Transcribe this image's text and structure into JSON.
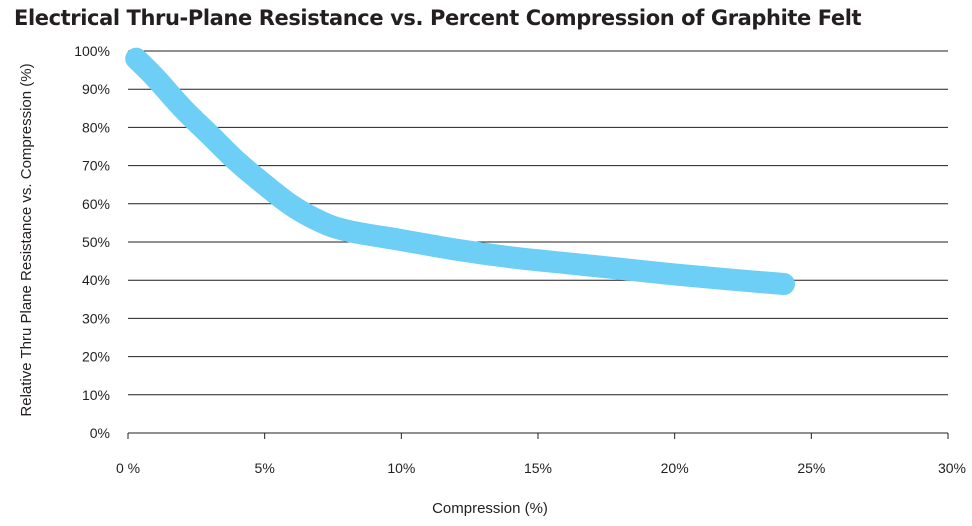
{
  "chart_data": {
    "type": "line",
    "title": "Electrical Thru-Plane Resistance vs. Percent Compression of Graphite Felt",
    "xlabel": "Compression (%)",
    "ylabel": "Relative Thru Plane Resistance vs. Compression (%)",
    "xlim": [
      0,
      30
    ],
    "ylim": [
      0,
      100
    ],
    "x_ticks": [
      0,
      5,
      10,
      15,
      20,
      25,
      30
    ],
    "x_tick_labels": [
      "0 %",
      "5%",
      "10%",
      "15%",
      "20%",
      "25%",
      "30%"
    ],
    "y_ticks": [
      0,
      10,
      20,
      30,
      40,
      50,
      60,
      70,
      80,
      90,
      100
    ],
    "y_tick_labels": [
      "0%",
      "10%",
      "20%",
      "30%",
      "40%",
      "50%",
      "60%",
      "70%",
      "80%",
      "90%",
      "100%"
    ],
    "grid": "horizontal",
    "series": [
      {
        "color": "#6dcff6",
        "x": [
          0.3,
          1,
          2,
          3,
          4,
          5,
          6,
          7,
          8,
          10,
          12,
          14,
          16,
          18,
          20,
          22,
          24
        ],
        "y": [
          98,
          93,
          85,
          78,
          71,
          65,
          59.5,
          55.5,
          53,
          50.5,
          48,
          46,
          44.5,
          43,
          41.5,
          40.2,
          39
        ]
      }
    ]
  }
}
